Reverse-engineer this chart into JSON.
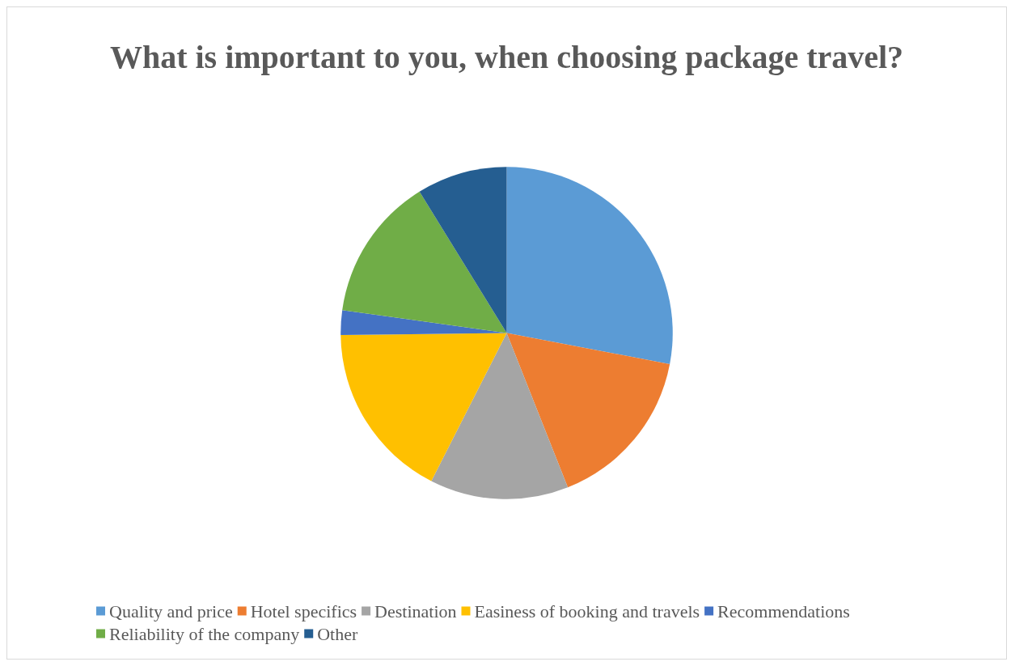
{
  "chart_data": {
    "type": "pie",
    "title": "What is important to you, when choosing package travel?",
    "categories": [
      "Quality and price",
      "Hotel specifics",
      "Destination",
      "Easiness of booking and travels",
      "Recommendations",
      "Reliability of the company",
      "Other"
    ],
    "values": [
      28,
      16,
      13.5,
      17.3,
      2.4,
      14,
      8.8
    ],
    "colors": [
      "#5b9bd5",
      "#ed7d31",
      "#a5a5a5",
      "#ffc000",
      "#4472c4",
      "#70ad47",
      "#255e91"
    ],
    "legend": "bottom"
  }
}
